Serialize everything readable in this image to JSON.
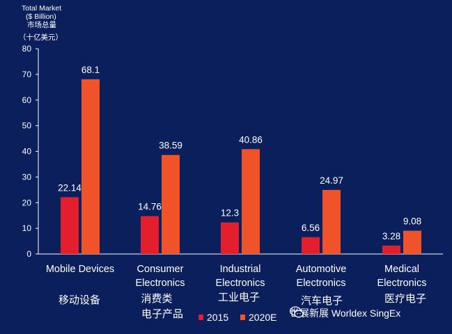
{
  "chart_data": {
    "type": "bar",
    "ylabel_lines": [
      "Total Market",
      "($ Billion)",
      "市场总量",
      "（十亿美元）"
    ],
    "ylim": [
      0,
      80
    ],
    "yticks": [
      0,
      10,
      20,
      30,
      40,
      50,
      60,
      70,
      80
    ],
    "categories": [
      {
        "en": [
          "Mobile Devices"
        ],
        "zh": [
          "移动设备"
        ]
      },
      {
        "en": [
          "Consumer",
          "Electronics"
        ],
        "zh": [
          "消费类",
          "电子产品"
        ]
      },
      {
        "en": [
          "Industrial",
          "Electronics"
        ],
        "zh": [
          "工业电子"
        ]
      },
      {
        "en": [
          "Automotive",
          "Electronics"
        ],
        "zh": [
          "汽车电子"
        ]
      },
      {
        "en": [
          "Medical",
          "Electronics"
        ],
        "zh": [
          "医疗电子"
        ]
      }
    ],
    "series": [
      {
        "name": "2015",
        "color": "#e31e2d",
        "values": [
          22.14,
          14.76,
          12.3,
          6.56,
          3.28
        ],
        "labels": [
          "22.14",
          "14.76",
          "12.3",
          "6.56",
          "3.28"
        ]
      },
      {
        "name": "2020E",
        "color": "#f0522a",
        "values": [
          68.1,
          38.59,
          40.86,
          24.97,
          9.08
        ],
        "labels": [
          "68.1",
          "38.59",
          "40.86",
          "24.97",
          "9.08"
        ]
      }
    ],
    "legend_placement": "bottom-center"
  },
  "watermark": {
    "text": "世展新展 Worldex SingEx",
    "icon": "wechat-icon"
  }
}
